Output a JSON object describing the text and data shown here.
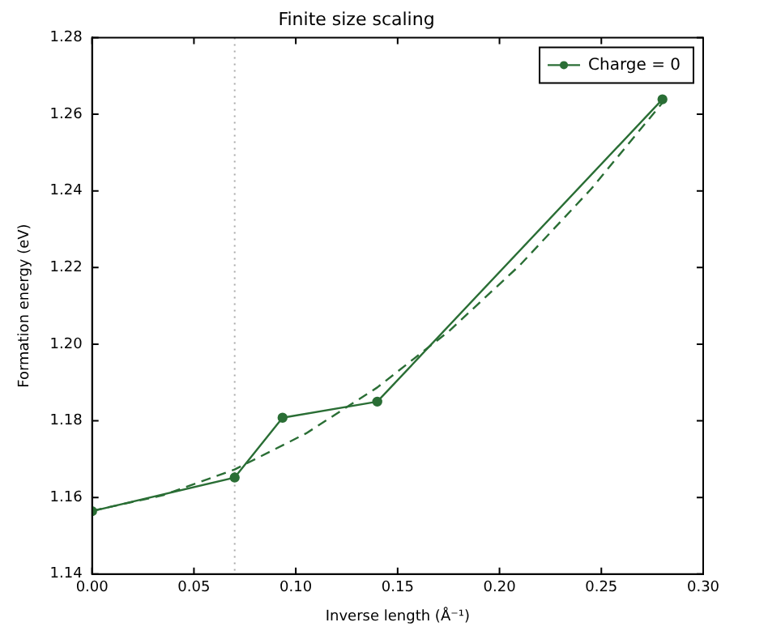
{
  "chart_data": {
    "type": "line",
    "title": "Finite size scaling",
    "xlabel": "Inverse length (Å⁻¹)",
    "ylabel": "Formation energy (eV)",
    "series": [
      {
        "name": "Charge = 0",
        "color": "#2a6e35",
        "x": [
          0,
          0.07,
          0.0935,
          0.14,
          0.28
        ],
        "values": [
          1.1564,
          1.1652,
          1.1808,
          1.185,
          1.2639
        ],
        "marker": "circle",
        "line_style": "solid"
      },
      {
        "color": "#2a6e35",
        "x": [
          0,
          0.035,
          0.07,
          0.105,
          0.14,
          0.175,
          0.21,
          0.245,
          0.28
        ],
        "values": [
          1.1565,
          1.1606,
          1.1673,
          1.1767,
          1.1887,
          1.2033,
          1.2206,
          1.2405,
          1.263
        ],
        "marker": "none",
        "line_style": "dashed"
      }
    ],
    "ref_lines": [
      {
        "axis": "x",
        "value": 0.07,
        "color": "#aaaaaa",
        "line_style": "dotted"
      }
    ],
    "xlim": [
      0,
      0.3
    ],
    "xticks": [
      {
        "value": 0,
        "label": "0.00"
      },
      {
        "value": 0.05,
        "label": "0.05"
      },
      {
        "value": 0.1,
        "label": "0.10"
      },
      {
        "value": 0.15,
        "label": "0.15"
      },
      {
        "value": 0.2,
        "label": "0.20"
      },
      {
        "value": 0.25,
        "label": "0.25"
      },
      {
        "value": 0.3,
        "label": "0.30"
      }
    ],
    "ylim": [
      1.14,
      1.28
    ],
    "yticks": [
      1.14,
      1.16,
      1.18,
      {
        "value": 1.2,
        "label": "1.20"
      },
      1.22,
      1.24,
      1.26,
      1.28
    ],
    "grid": false,
    "legend": "top right"
  }
}
